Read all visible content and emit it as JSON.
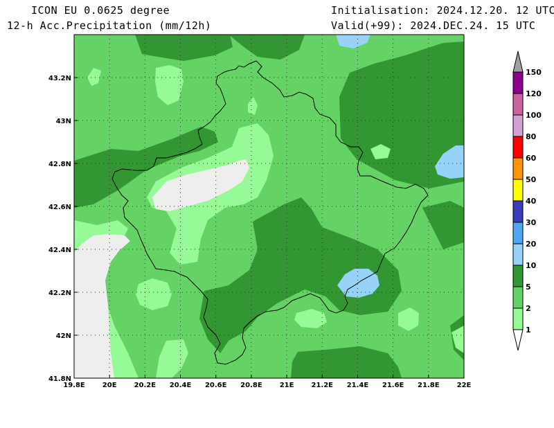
{
  "header": {
    "model": "ICON EU 0.0625 degree",
    "field": "12-h Acc.Precipitation (mm/12h)",
    "init": "Initialisation: 2024.12.20. 12 UTC",
    "valid": "Valid(+99): 2024.DEC.24. 15 UTC"
  },
  "map": {
    "lon_ticks": [
      "19.8E",
      "20E",
      "20.2E",
      "20.4E",
      "20.6E",
      "20.8E",
      "21E",
      "21.2E",
      "21.4E",
      "21.6E",
      "21.8E",
      "22E"
    ],
    "lat_ticks": [
      "41.8N",
      "42N",
      "42.2N",
      "42.4N",
      "42.6N",
      "42.8N",
      "43N",
      "43.2N"
    ],
    "lon_range": [
      19.8,
      22.0
    ],
    "lat_range": [
      41.8,
      43.4
    ],
    "grid": true
  },
  "legend": {
    "levels": [
      "1",
      "2",
      "5",
      "10",
      "20",
      "30",
      "40",
      "50",
      "60",
      "80",
      "100",
      "120",
      "150"
    ],
    "colors": [
      "#ffffff",
      "#96fa96",
      "#64d264",
      "#329632",
      "#96d2fa",
      "#50a5f5",
      "#3c3cbe",
      "#ffff00",
      "#ff9600",
      "#ff0000",
      "#d2a0d2",
      "#c8649b",
      "#8c008c",
      "#a0a0a0"
    ]
  },
  "palette": {
    "none": "#eeeeee",
    "c1": "#96fa96",
    "c2": "#64d264",
    "c5": "#329632",
    "c10": "#96d2fa"
  }
}
